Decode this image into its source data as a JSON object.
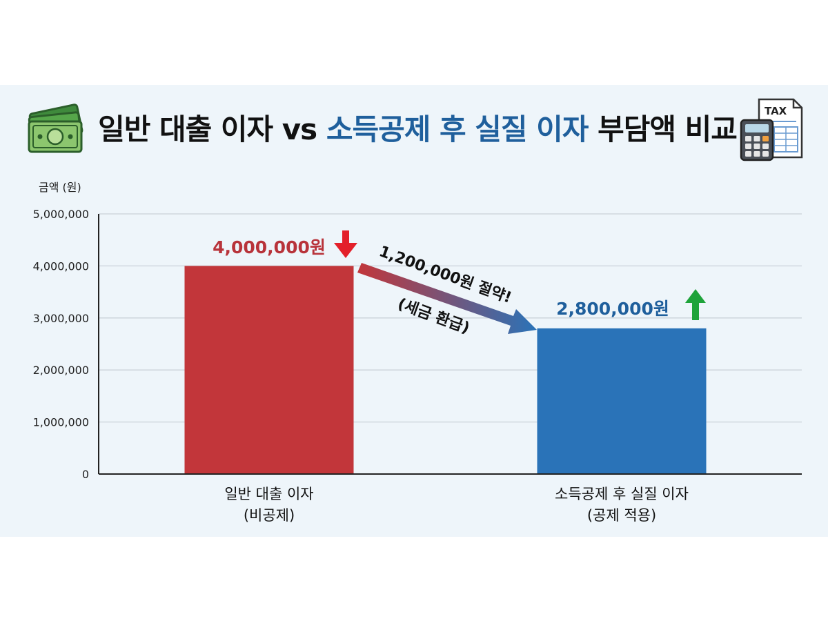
{
  "header": {
    "title_part1": "일반 대출 이자 vs ",
    "title_part2": "소득공제 후 실질 이자",
    "title_part3": " 부담액 비교",
    "left_icon": "money-bills-icon",
    "right_icon": "calculator-tax-form-icon",
    "tax_label": "TAX"
  },
  "colors": {
    "background": "#eef5fa",
    "bar_general": "#c2363a",
    "bar_deducted": "#2a73b8",
    "label_general": "#b8333a",
    "label_deducted": "#1f5f9c",
    "arrow_down": "#e3202a",
    "arrow_up": "#1ea33a",
    "title_accent": "#1f5f9c"
  },
  "chart_data": {
    "type": "bar",
    "ylabel": "금액 (원)",
    "ylim": [
      0,
      5000000
    ],
    "yticks": [
      0,
      1000000,
      2000000,
      3000000,
      4000000,
      5000000
    ],
    "ytick_labels": [
      "0",
      "1,000,000",
      "2,000,000",
      "3,000,000",
      "4,000,000",
      "5,000,000"
    ],
    "grid": true,
    "categories": [
      [
        "일반 대출 이자",
        "(비공제)"
      ],
      [
        "소득공제 후 실질 이자",
        "(공제 적용)"
      ]
    ],
    "values": [
      4000000,
      2800000
    ],
    "data_labels": [
      "4,000,000원",
      "2,800,000원"
    ],
    "annotation": {
      "text_main": "1,200,000원 절약!",
      "text_sub": "(세금 환급)",
      "difference": 1200000
    }
  }
}
